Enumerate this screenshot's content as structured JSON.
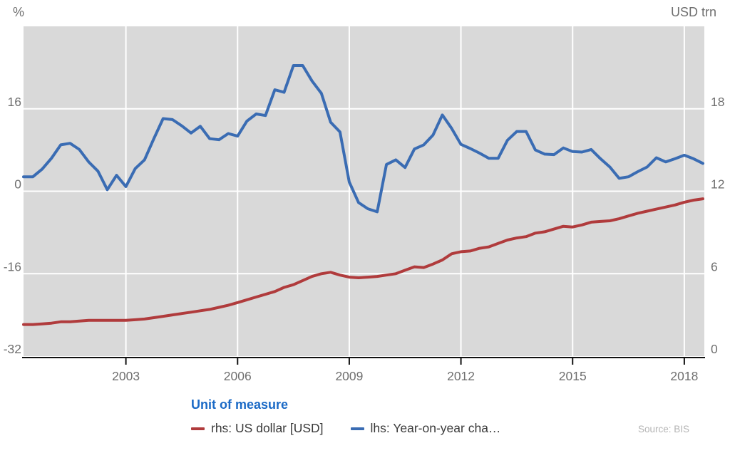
{
  "header": {
    "left_unit_label": "%",
    "right_unit_label": "USD trn"
  },
  "legend": {
    "title": "Unit of measure"
  },
  "source": "Source: BIS",
  "chart_data": {
    "type": "line",
    "title": "",
    "legend_title": "Unit of measure",
    "grid": true,
    "legend_position": "bottom",
    "x_axis": {
      "min": 2000.25,
      "max": 2018.5,
      "ticks": [
        2003,
        2006,
        2009,
        2012,
        2015,
        2018
      ]
    },
    "left_axis": {
      "unit": "%",
      "min": -32,
      "max": 32,
      "ticks": [
        16,
        0,
        -16,
        -32
      ]
    },
    "right_axis": {
      "unit": "USD trn",
      "min": 0,
      "max": 24,
      "ticks": [
        18,
        12,
        6,
        0
      ]
    },
    "x_start": 2000.25,
    "x_step": 0.25,
    "series": [
      {
        "name": "rhs: US dollar [USD]",
        "axis": "right",
        "color": "#b03b3c",
        "values": [
          2.3,
          2.3,
          2.35,
          2.4,
          2.5,
          2.5,
          2.55,
          2.6,
          2.6,
          2.6,
          2.6,
          2.6,
          2.65,
          2.7,
          2.8,
          2.9,
          3.0,
          3.1,
          3.2,
          3.3,
          3.4,
          3.55,
          3.7,
          3.9,
          4.1,
          4.3,
          4.5,
          4.7,
          5.0,
          5.2,
          5.5,
          5.8,
          6.0,
          6.1,
          5.9,
          5.75,
          5.7,
          5.75,
          5.8,
          5.9,
          6.0,
          6.25,
          6.5,
          6.45,
          6.7,
          7.0,
          7.45,
          7.6,
          7.65,
          7.85,
          7.95,
          8.2,
          8.45,
          8.6,
          8.7,
          8.95,
          9.05,
          9.25,
          9.45,
          9.4,
          9.55,
          9.75,
          9.8,
          9.85,
          10.0,
          10.2,
          10.4,
          10.55,
          10.7,
          10.85,
          11.0,
          11.2,
          11.35,
          11.45
        ]
      },
      {
        "name": "lhs: Year-on-year cha…",
        "axis": "left",
        "color": "#3a6cb3",
        "values": [
          2.8,
          2.8,
          4.3,
          6.4,
          9.0,
          9.3,
          8.1,
          5.7,
          3.9,
          0.3,
          3.1,
          0.9,
          4.4,
          6.1,
          10.2,
          14.1,
          13.9,
          12.7,
          11.3,
          12.6,
          10.2,
          10.0,
          11.2,
          10.7,
          13.6,
          15.0,
          14.7,
          19.7,
          19.2,
          24.4,
          24.4,
          21.4,
          19.0,
          13.4,
          11.5,
          1.8,
          -2.2,
          -3.4,
          -4.0,
          5.2,
          6.1,
          4.6,
          8.2,
          9.0,
          10.9,
          14.8,
          12.2,
          9.1,
          8.3,
          7.4,
          6.4,
          6.4,
          9.9,
          11.6,
          11.6,
          8.0,
          7.2,
          7.1,
          8.4,
          7.7,
          7.6,
          8.1,
          6.3,
          4.7,
          2.5,
          2.8,
          3.8,
          4.7,
          6.5,
          5.7,
          6.3,
          7.0,
          6.3,
          5.4
        ]
      }
    ],
    "colors": {
      "plot_bg": "#d9d9d9",
      "gridline": "#ffffff",
      "axis_line": "#111111",
      "axis_text": "#6f6f6f",
      "legend_title": "#1b6ac6",
      "legend_text": "#3a3a3a",
      "source_text": "#b4b4b4"
    }
  }
}
